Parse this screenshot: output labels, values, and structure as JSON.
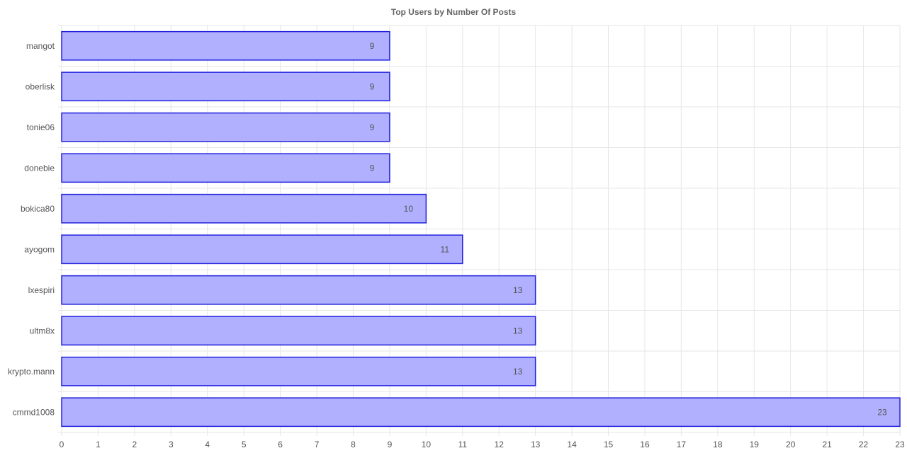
{
  "chart_data": {
    "type": "bar",
    "orientation": "horizontal",
    "title": "Top Users by Number Of Posts",
    "xlabel": "",
    "ylabel": "",
    "categories": [
      "mangot",
      "oberlisk",
      "tonie06",
      "donebie",
      "bokica80",
      "ayogom",
      "lxespiri",
      "ultm8x",
      "krypto.mann",
      "cmmd1008"
    ],
    "values": [
      9,
      9,
      9,
      9,
      10,
      11,
      13,
      13,
      13,
      23
    ],
    "xlim": [
      0,
      23
    ],
    "xticks": [
      0,
      1,
      2,
      3,
      4,
      5,
      6,
      7,
      8,
      9,
      10,
      11,
      12,
      13,
      14,
      15,
      16,
      17,
      18,
      19,
      20,
      21,
      22,
      23
    ],
    "grid": true,
    "data_labels": true,
    "bar_fill": "#b0b0ff",
    "bar_border": "#2222dd"
  }
}
